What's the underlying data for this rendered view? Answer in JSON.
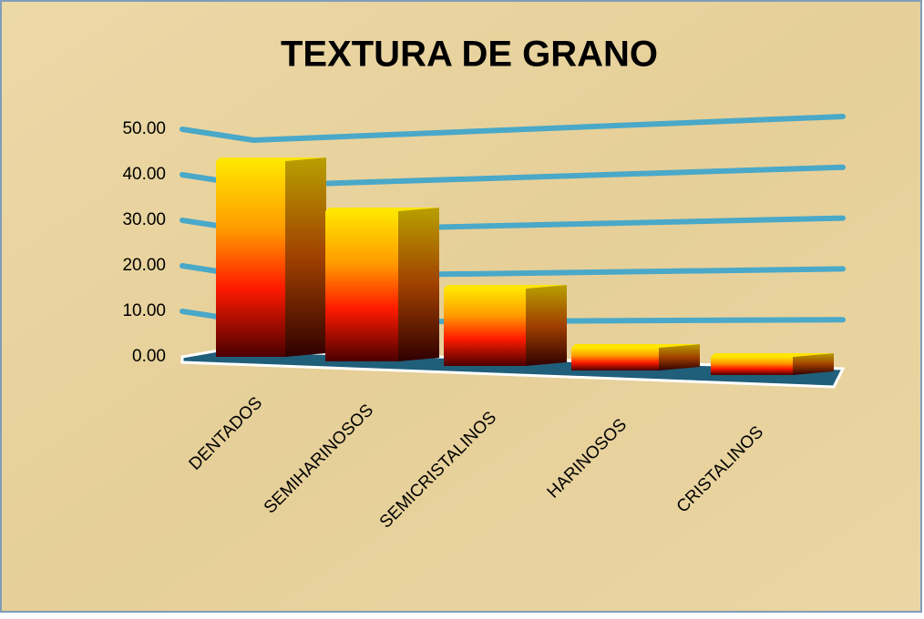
{
  "chart_data": {
    "type": "bar3d",
    "title": "TEXTURA DE GRANO",
    "categories": [
      "DENTADOS",
      "SEMIHARINOSOS",
      "SEMICRISTALINOS",
      "HARINOSOS",
      "CRISTALINOS"
    ],
    "values": [
      43,
      33,
      17,
      5,
      4
    ],
    "ylim": [
      0,
      50
    ],
    "yticks": [
      {
        "value": 0,
        "label": "0.00"
      },
      {
        "value": 10,
        "label": "10.00"
      },
      {
        "value": 20,
        "label": "20.00"
      },
      {
        "value": 30,
        "label": "30.00"
      },
      {
        "value": 40,
        "label": "40.00"
      },
      {
        "value": 50,
        "label": "50.00"
      }
    ],
    "grid": true,
    "grid_color": "#4aa8c8"
  }
}
